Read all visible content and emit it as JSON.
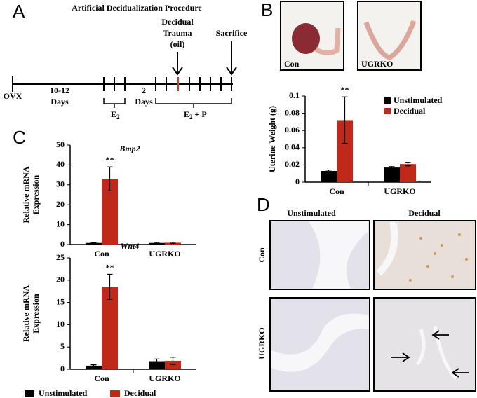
{
  "panels": {
    "a": "A",
    "b": "B",
    "c": "C",
    "d": "D"
  },
  "timeline": {
    "title": "Artificial Decidualization Procedure",
    "trauma": [
      "Decidual",
      "Trauma",
      "(oil)"
    ],
    "sacrifice": "Sacrifice",
    "start": "OVX",
    "interval1": [
      "10-12",
      "Days"
    ],
    "hormone1": "E",
    "hormone1_sub": "2",
    "interval2": [
      "2",
      "Days"
    ],
    "hormone2": "E",
    "hormone2_sub": "2",
    "hormone2_rest": " + P"
  },
  "photos": [
    "Con",
    "UGRKO"
  ],
  "histology": {
    "columns": [
      "Unstimulated",
      "Decidual"
    ],
    "rows": [
      "Con",
      "UGRKO"
    ]
  },
  "chart_data": [
    {
      "type": "bar",
      "ylabel": "Uterine Weight (g)",
      "categories": [
        "Con",
        "UGRKO"
      ],
      "series": [
        {
          "name": "Unstimulated",
          "color": "#000000",
          "values": [
            0.013,
            0.017
          ],
          "errors": [
            0.001,
            0.001
          ]
        },
        {
          "name": "Decidual",
          "color": "#c0281a",
          "values": [
            0.072,
            0.021
          ],
          "errors": [
            0.027,
            0.002
          ]
        }
      ],
      "annotation": "**",
      "ylim": [
        0,
        0.1
      ],
      "yticks": [
        0,
        0.02,
        0.04,
        0.06,
        0.08,
        0.1
      ],
      "legend": "top-right"
    },
    {
      "type": "bar",
      "title": "Bmp2",
      "ylabel": [
        "Relative mRNA",
        "Expression"
      ],
      "categories": [
        "Con",
        "UGRKO"
      ],
      "series": [
        {
          "color": "#000000",
          "values": [
            0.8,
            0.8
          ],
          "errors": [
            0.2,
            0.3
          ]
        },
        {
          "color": "#c0281a",
          "values": [
            33,
            0.9
          ],
          "errors": [
            6,
            0.3
          ]
        }
      ],
      "annotation": "**",
      "ylim": [
        0,
        50
      ],
      "yticks": [
        0,
        10,
        20,
        30,
        40,
        50
      ]
    },
    {
      "type": "bar",
      "title": "Wnt4",
      "ylabel": [
        "Relative mRNA",
        "Expression"
      ],
      "categories": [
        "Con",
        "UGRKO"
      ],
      "series": [
        {
          "name": "Unstimulated",
          "color": "#000000",
          "values": [
            0.8,
            1.8
          ],
          "errors": [
            0.2,
            0.5
          ]
        },
        {
          "name": "Decidual",
          "color": "#c0281a",
          "values": [
            18.5,
            1.9
          ],
          "errors": [
            2.8,
            0.8
          ]
        }
      ],
      "annotation": "**",
      "ylim": [
        0,
        25
      ],
      "yticks": [
        0,
        5,
        10,
        15,
        20,
        25
      ],
      "legend": "bottom"
    }
  ]
}
